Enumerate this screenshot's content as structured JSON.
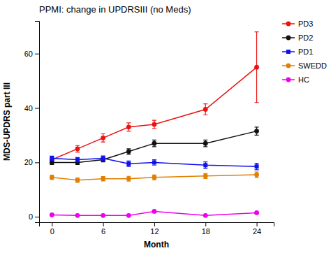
{
  "chart_data": {
    "type": "line",
    "title": "PPMI: change in UPDRSIII (no Meds)",
    "x_label": "Month",
    "y_label": "MDS-UPDRS part III",
    "x": [
      0,
      3,
      6,
      9,
      12,
      18,
      24
    ],
    "series": [
      {
        "name": "PD3",
        "color": "#ee1111",
        "marker": "circle",
        "values": [
          21,
          25,
          29,
          33,
          34,
          39.5,
          55
        ],
        "errors": [
          1.0,
          1.2,
          1.5,
          1.5,
          1.5,
          2.0,
          13.0
        ]
      },
      {
        "name": "PD2",
        "color": "#111111",
        "marker": "circle",
        "values": [
          20,
          20,
          21,
          24,
          27,
          27,
          31.5
        ],
        "errors": [
          0.8,
          0.8,
          0.8,
          1.0,
          1.2,
          1.2,
          1.5
        ]
      },
      {
        "name": "PD1",
        "color": "#1111ee",
        "marker": "square",
        "values": [
          21.5,
          21,
          21.5,
          19.5,
          20,
          19,
          18.5
        ],
        "errors": [
          0.8,
          0.8,
          0.9,
          1.0,
          1.0,
          1.2,
          1.2
        ]
      },
      {
        "name": "SWEDD",
        "color": "#e08000",
        "marker": "circle",
        "values": [
          14.5,
          13.5,
          14,
          14,
          14.5,
          15,
          15.5
        ],
        "errors": [
          0.8,
          0.8,
          0.8,
          0.9,
          0.9,
          0.9,
          1.0
        ]
      },
      {
        "name": "HC",
        "color": "#ee00ee",
        "marker": "circle",
        "values": [
          0.7,
          0.5,
          0.5,
          0.5,
          2.0,
          0.5,
          1.5
        ],
        "errors": [
          0.2,
          0.1,
          0.1,
          0.1,
          0.5,
          0.1,
          0.2
        ]
      }
    ],
    "xlim": [
      -1.5,
      26
    ],
    "ylim": [
      -2,
      72
    ],
    "xticks": [
      0,
      6,
      12,
      18,
      24
    ],
    "yticks": [
      0,
      20,
      40,
      60
    ],
    "grid": false,
    "legend": "right"
  }
}
